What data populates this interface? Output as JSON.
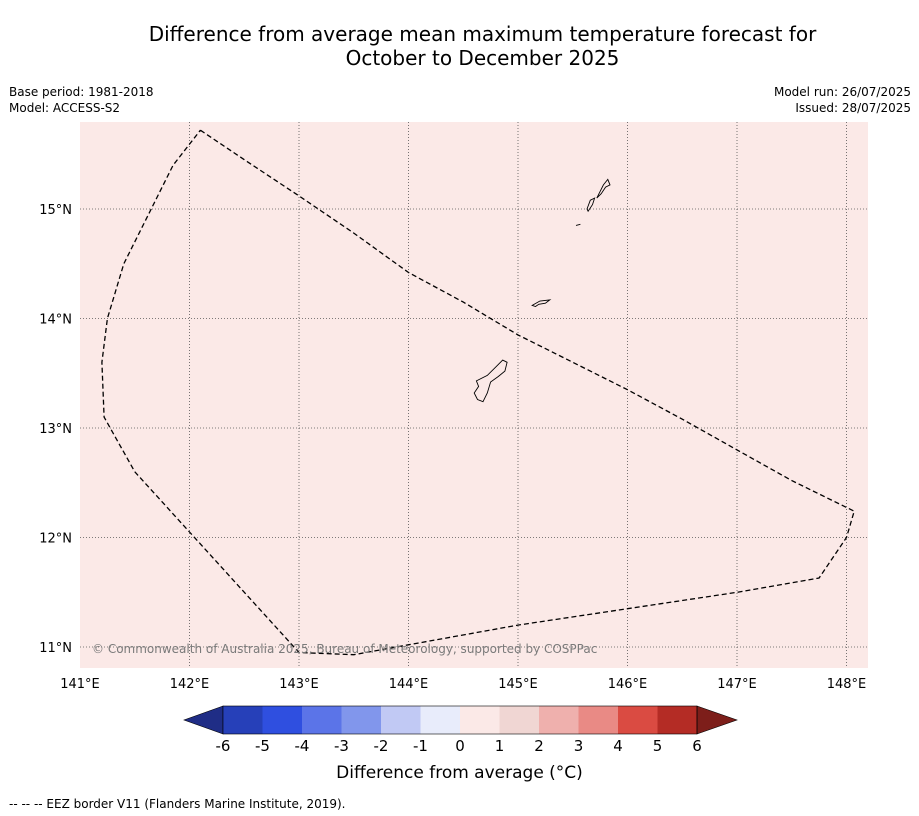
{
  "title_line1": "Difference from average mean maximum temperature forecast for",
  "title_line2": "October to December 2025",
  "meta_left": [
    "Base period: 1981-2018",
    "Model: ACCESS-S2"
  ],
  "meta_right": [
    "Model run: 26/07/2025",
    "Issued: 28/07/2025"
  ],
  "map": {
    "background_color": "#fbe9e7",
    "lon_ticks": [
      "141°E",
      "142°E",
      "143°E",
      "144°E",
      "145°E",
      "146°E",
      "147°E",
      "148°E"
    ],
    "lat_ticks": [
      "15°N",
      "14°N",
      "13°N",
      "12°N",
      "11°N"
    ],
    "copyright": "© Commonwealth of Australia 2025, Bureau of Meteorology, supported by COSPPac",
    "eez_border": [
      [
        142.1,
        15.72
      ],
      [
        142.5,
        15.45
      ],
      [
        143.0,
        15.12
      ],
      [
        143.5,
        14.78
      ],
      [
        144.0,
        14.42
      ],
      [
        144.5,
        14.15
      ],
      [
        145.0,
        13.85
      ],
      [
        145.5,
        13.6
      ],
      [
        146.0,
        13.35
      ],
      [
        146.5,
        13.08
      ],
      [
        147.0,
        12.8
      ],
      [
        147.5,
        12.52
      ],
      [
        148.07,
        12.24
      ],
      [
        148.0,
        12.0
      ],
      [
        147.75,
        11.63
      ],
      [
        147.0,
        11.5
      ],
      [
        146.0,
        11.35
      ],
      [
        145.0,
        11.2
      ],
      [
        144.0,
        11.02
      ],
      [
        143.5,
        10.93
      ],
      [
        143.0,
        10.95
      ],
      [
        142.5,
        11.5
      ],
      [
        142.0,
        12.05
      ],
      [
        141.5,
        12.6
      ],
      [
        141.22,
        13.1
      ],
      [
        141.2,
        13.6
      ],
      [
        141.25,
        14.0
      ],
      [
        141.4,
        14.5
      ],
      [
        141.65,
        15.0
      ],
      [
        141.85,
        15.4
      ],
      [
        142.1,
        15.72
      ]
    ],
    "islands": [
      [
        [
          144.62,
          13.43
        ],
        [
          144.72,
          13.48
        ],
        [
          144.8,
          13.56
        ],
        [
          144.86,
          13.62
        ],
        [
          144.9,
          13.6
        ],
        [
          144.88,
          13.52
        ],
        [
          144.82,
          13.47
        ],
        [
          144.75,
          13.42
        ],
        [
          144.72,
          13.32
        ],
        [
          144.68,
          13.24
        ],
        [
          144.63,
          13.26
        ],
        [
          144.6,
          13.32
        ],
        [
          144.64,
          13.38
        ],
        [
          144.62,
          13.43
        ]
      ],
      [
        [
          145.13,
          14.12
        ],
        [
          145.2,
          14.16
        ],
        [
          145.29,
          14.17
        ],
        [
          145.25,
          14.14
        ],
        [
          145.19,
          14.13
        ],
        [
          145.16,
          14.11
        ],
        [
          145.13,
          14.12
        ]
      ],
      [
        [
          145.63,
          15.0
        ],
        [
          145.66,
          15.08
        ],
        [
          145.7,
          15.1
        ],
        [
          145.68,
          15.04
        ],
        [
          145.64,
          14.98
        ],
        [
          145.63,
          15.0
        ]
      ],
      [
        [
          145.72,
          15.1
        ],
        [
          145.78,
          15.22
        ],
        [
          145.82,
          15.27
        ],
        [
          145.84,
          15.22
        ],
        [
          145.8,
          15.2
        ],
        [
          145.76,
          15.14
        ],
        [
          145.72,
          15.1
        ]
      ],
      [
        [
          145.53,
          14.85
        ],
        [
          145.57,
          14.86
        ]
      ]
    ]
  },
  "colorbar": {
    "colors": [
      "#1f2d86",
      "#2640b9",
      "#2f4fe0",
      "#5b74e8",
      "#8196ec",
      "#c1c9f4",
      "#e8ecfb",
      "#fbe9e7",
      "#f0d6d3",
      "#efb0ad",
      "#e98a85",
      "#da4b42",
      "#b42c25",
      "#7d1e1a"
    ],
    "tick_labels": [
      "-6",
      "-5",
      "-4",
      "-3",
      "-2",
      "-1",
      "0",
      "1",
      "2",
      "3",
      "4",
      "5",
      "6"
    ],
    "label": "Difference from average (°C)"
  },
  "footer": "--  --  -- EEZ border V11 (Flanders Marine Institute, 2019)."
}
